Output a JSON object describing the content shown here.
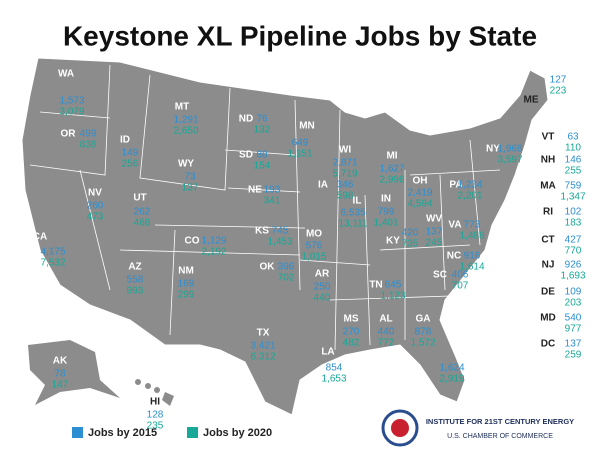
{
  "title": "Keystone XL Pipeline Jobs by State",
  "states": [
    {
      "name": "WA",
      "jobs_2015": "1,573",
      "jobs_2020": "3,079"
    },
    {
      "name": "OR",
      "jobs_2015": "499",
      "jobs_2020": "838"
    },
    {
      "name": "ID",
      "jobs_2015": "149",
      "jobs_2020": "256"
    },
    {
      "name": "MT",
      "jobs_2015": "1,291",
      "jobs_2020": "2,650"
    },
    {
      "name": "WY",
      "jobs_2015": "73",
      "jobs_2020": "137"
    },
    {
      "name": "ND",
      "jobs_2015": "76",
      "jobs_2020": "132"
    },
    {
      "name": "SD",
      "jobs_2015": "88",
      "jobs_2020": "154"
    },
    {
      "name": "NE",
      "jobs_2015": "193",
      "jobs_2020": "341"
    },
    {
      "name": "MN",
      "jobs_2015": "649",
      "jobs_2020": "1,151"
    },
    {
      "name": "WI",
      "jobs_2015": "2,871",
      "jobs_2020": "5,719"
    },
    {
      "name": "MI",
      "jobs_2015": "1,627",
      "jobs_2020": "2,996"
    },
    {
      "name": "IA",
      "jobs_2015": "346",
      "jobs_2020": "598"
    },
    {
      "name": "IL",
      "jobs_2015": "6,535",
      "jobs_2020": "13,111"
    },
    {
      "name": "IN",
      "jobs_2015": "799",
      "jobs_2020": "1,401"
    },
    {
      "name": "OH",
      "jobs_2015": "2,419",
      "jobs_2020": "4,594"
    },
    {
      "name": "PA",
      "jobs_2015": "1,234",
      "jobs_2020": "2,201"
    },
    {
      "name": "NY",
      "jobs_2015": "1,968",
      "jobs_2020": "3,597"
    },
    {
      "name": "NV",
      "jobs_2015": "260",
      "jobs_2020": "473"
    },
    {
      "name": "UT",
      "jobs_2015": "262",
      "jobs_2020": "468"
    },
    {
      "name": "CO",
      "jobs_2015": "1,129",
      "jobs_2020": "2,192"
    },
    {
      "name": "KS",
      "jobs_2015": "745",
      "jobs_2020": "1,453"
    },
    {
      "name": "MO",
      "jobs_2015": "576",
      "jobs_2020": "1,015"
    },
    {
      "name": "CA",
      "jobs_2015": "4,175",
      "jobs_2020": "7,532"
    },
    {
      "name": "AZ",
      "jobs_2015": "558",
      "jobs_2020": "993"
    },
    {
      "name": "NM",
      "jobs_2015": "169",
      "jobs_2020": "299"
    },
    {
      "name": "OK",
      "jobs_2015": "396",
      "jobs_2020": "702"
    },
    {
      "name": "AR",
      "jobs_2015": "250",
      "jobs_2020": "440"
    },
    {
      "name": "TX",
      "jobs_2015": "3,421",
      "jobs_2020": "6,312"
    },
    {
      "name": "LA",
      "jobs_2015": "854",
      "jobs_2020": "1,653"
    },
    {
      "name": "MS",
      "jobs_2015": "270",
      "jobs_2020": "482"
    },
    {
      "name": "AL",
      "jobs_2015": "440",
      "jobs_2020": "772"
    },
    {
      "name": "GA",
      "jobs_2015": "878",
      "jobs_2020": "1,572"
    },
    {
      "name": "TN",
      "jobs_2015": "645",
      "jobs_2020": "1,123"
    },
    {
      "name": "KY",
      "jobs_2015": "420",
      "jobs_2020": "735"
    },
    {
      "name": "WV",
      "jobs_2015": "137",
      "jobs_2020": "245"
    },
    {
      "name": "VA",
      "jobs_2015": "773",
      "jobs_2020": "1,488"
    },
    {
      "name": "NC",
      "jobs_2015": "916",
      "jobs_2020": "1,614"
    },
    {
      "name": "SC",
      "jobs_2015": "406",
      "jobs_2020": "707"
    },
    {
      "name": "FL",
      "jobs_2015": "1,624",
      "jobs_2020": "2,919"
    },
    {
      "name": "AK",
      "jobs_2015": "78",
      "jobs_2020": "147"
    },
    {
      "name": "HI",
      "jobs_2015": "128",
      "jobs_2020": "235"
    },
    {
      "name": "ME",
      "jobs_2015": "127",
      "jobs_2020": "223"
    },
    {
      "name": "VT",
      "jobs_2015": "63",
      "jobs_2020": "110"
    },
    {
      "name": "NH",
      "jobs_2015": "146",
      "jobs_2020": "255"
    },
    {
      "name": "MA",
      "jobs_2015": "759",
      "jobs_2020": "1,347"
    },
    {
      "name": "RI",
      "jobs_2015": "102",
      "jobs_2020": "183"
    },
    {
      "name": "CT",
      "jobs_2015": "427",
      "jobs_2020": "770"
    },
    {
      "name": "NJ",
      "jobs_2015": "926",
      "jobs_2020": "1,693"
    },
    {
      "name": "DE",
      "jobs_2015": "109",
      "jobs_2020": "203"
    },
    {
      "name": "MD",
      "jobs_2015": "540",
      "jobs_2020": "977"
    },
    {
      "name": "DC",
      "jobs_2015": "137",
      "jobs_2020": "259"
    }
  ],
  "legend": [
    {
      "label": "Jobs by 2015",
      "color": "#2b8fd1"
    },
    {
      "label": "Jobs by 2020",
      "color": "#17a897"
    }
  ],
  "footer": {
    "line1": "INSTITUTE FOR 21ST CENTURY ENERGY",
    "line2": "U.S. CHAMBER OF COMMERCE"
  }
}
